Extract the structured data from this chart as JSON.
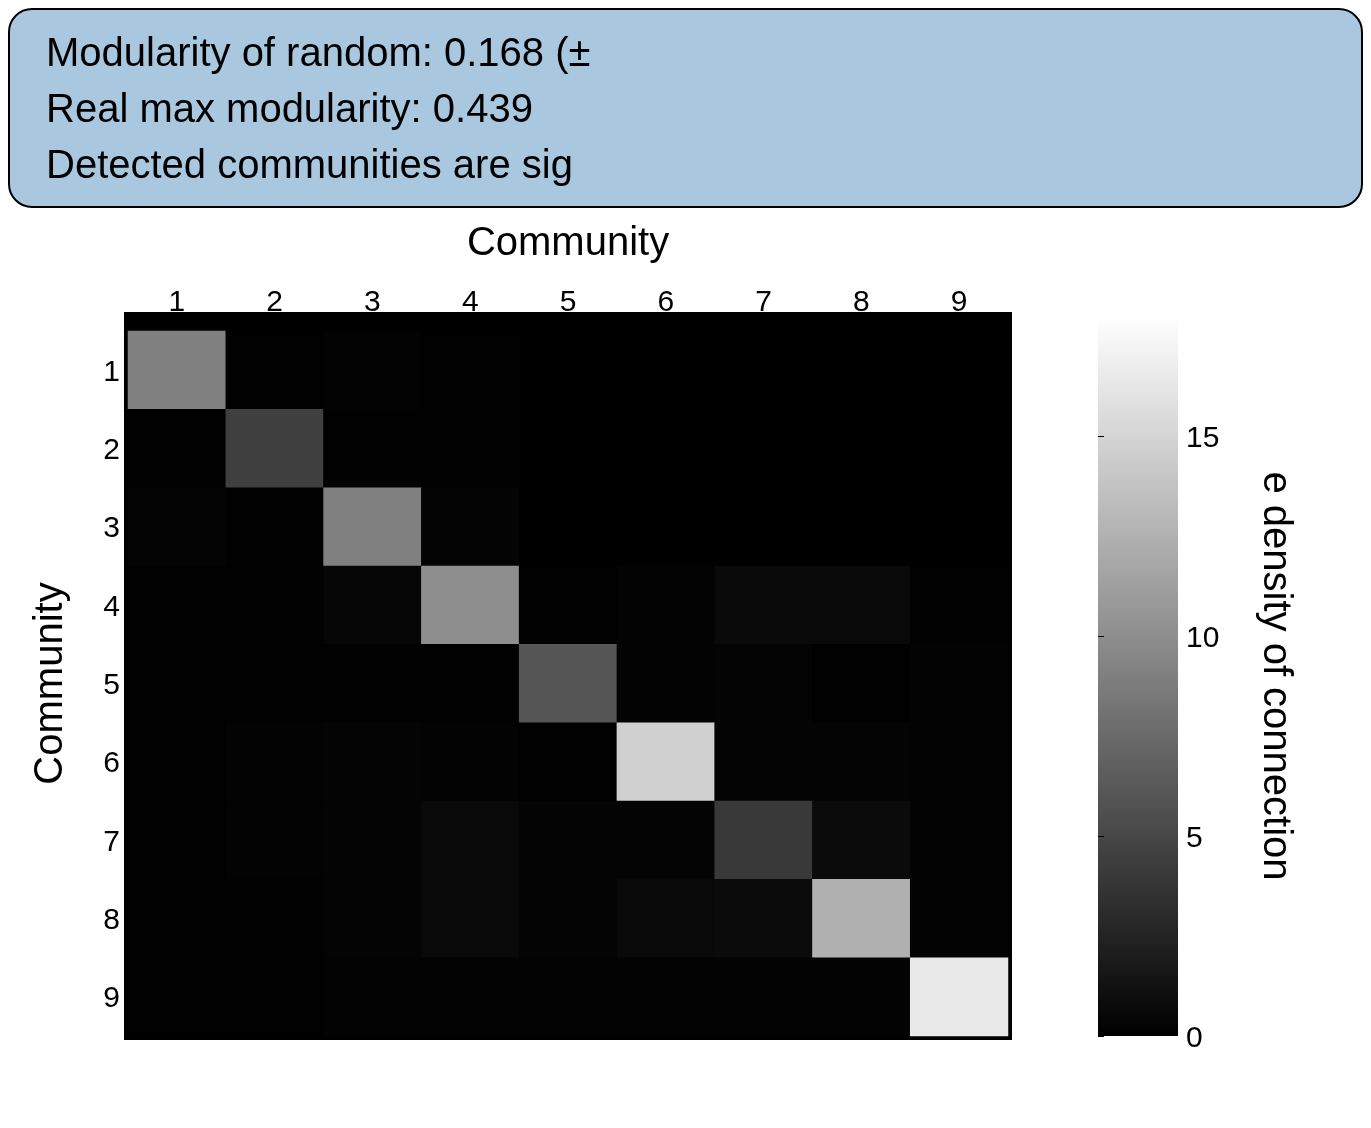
{
  "chart_data": {
    "type": "heatmap",
    "xlabel": "Community",
    "ylabel": "Community",
    "clabel": "e density of connection",
    "categories": [
      "1",
      "2",
      "3",
      "4",
      "5",
      "6",
      "7",
      "8",
      "9"
    ],
    "y_categories": [
      "1",
      "2",
      "3",
      "4",
      "5",
      "6",
      "7",
      "8",
      "9"
    ],
    "cells": [
      [
        9,
        0.1,
        0.2,
        0.1,
        null,
        null,
        null,
        null,
        null
      ],
      [
        0.1,
        4.5,
        0.1,
        0.1,
        null,
        null,
        null,
        null,
        null
      ],
      [
        0.3,
        0.1,
        9,
        0.3,
        null,
        null,
        null,
        null,
        null
      ],
      [
        0.1,
        0.1,
        0.4,
        10,
        0.1,
        0.2,
        0.6,
        0.6,
        0.1
      ],
      [
        0.1,
        0.1,
        0.1,
        0.1,
        6,
        0.2,
        0.3,
        0.1,
        0.2
      ],
      [
        0.1,
        0.2,
        0.3,
        0.2,
        0.1,
        14.7,
        0.3,
        0.3,
        0.2
      ],
      [
        0.1,
        0.2,
        0.3,
        0.6,
        0.3,
        0.3,
        4,
        0.8,
        0.2
      ],
      [
        0.1,
        0.1,
        0.3,
        0.6,
        0.3,
        0.6,
        0.8,
        12.4,
        0.2
      ],
      [
        0.1,
        0.1,
        0.2,
        0.2,
        0.2,
        0.2,
        0.2,
        0.2,
        16.4
      ]
    ],
    "clim": [
      0,
      18
    ],
    "cticks": [
      0,
      5,
      10,
      15
    ],
    "annotations": [
      "Modularity of random: 0.168 (±",
      "Real max modularity:  0.439",
      "Detected communities are sig"
    ]
  }
}
